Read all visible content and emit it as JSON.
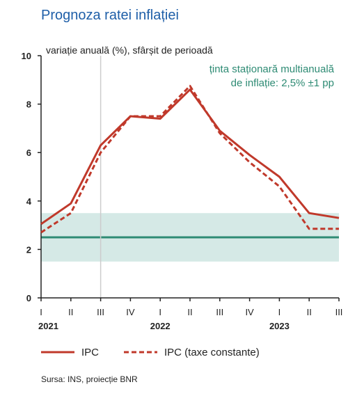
{
  "chart_data": {
    "type": "line",
    "title": "Prognoza ratei inflației",
    "ylabel": "variație anuală (%), sfârșit de perioadă",
    "ylim": [
      0,
      10
    ],
    "yticks": [
      "0",
      "2",
      "4",
      "6",
      "8",
      "10"
    ],
    "categories": [
      "I",
      "II",
      "III",
      "IV",
      "I",
      "II",
      "III",
      "IV",
      "I",
      "II",
      "III"
    ],
    "years": [
      {
        "label": "2021",
        "start": 0
      },
      {
        "label": "2022",
        "start": 4
      },
      {
        "label": "2023",
        "start": 8
      }
    ],
    "forecast_start_index": 2,
    "target": {
      "value": 2.5,
      "band": [
        1.5,
        3.5
      ],
      "label_line1": "ținta staționară multianuală",
      "label_line2": "de inflație: 2,5% ±1 pp"
    },
    "series": [
      {
        "name": "IPC",
        "style": "solid",
        "values": [
          3.05,
          3.9,
          6.3,
          7.5,
          7.4,
          8.6,
          6.9,
          5.9,
          5.0,
          3.5,
          3.3
        ]
      },
      {
        "name": "IPC (taxe constante)",
        "style": "dashed",
        "values": [
          2.7,
          3.5,
          6.0,
          7.5,
          7.5,
          8.75,
          6.8,
          5.6,
          4.6,
          2.85,
          2.85
        ]
      }
    ],
    "colors": {
      "title": "#1f5fa8",
      "line": "#c0392b",
      "target_line": "#2e8b74",
      "band": "#d5e9e6",
      "annotation": "#2e8b74",
      "grid": "#cccccc",
      "text": "#222222"
    },
    "source": "Sursa: INS, proiecție BNR"
  }
}
